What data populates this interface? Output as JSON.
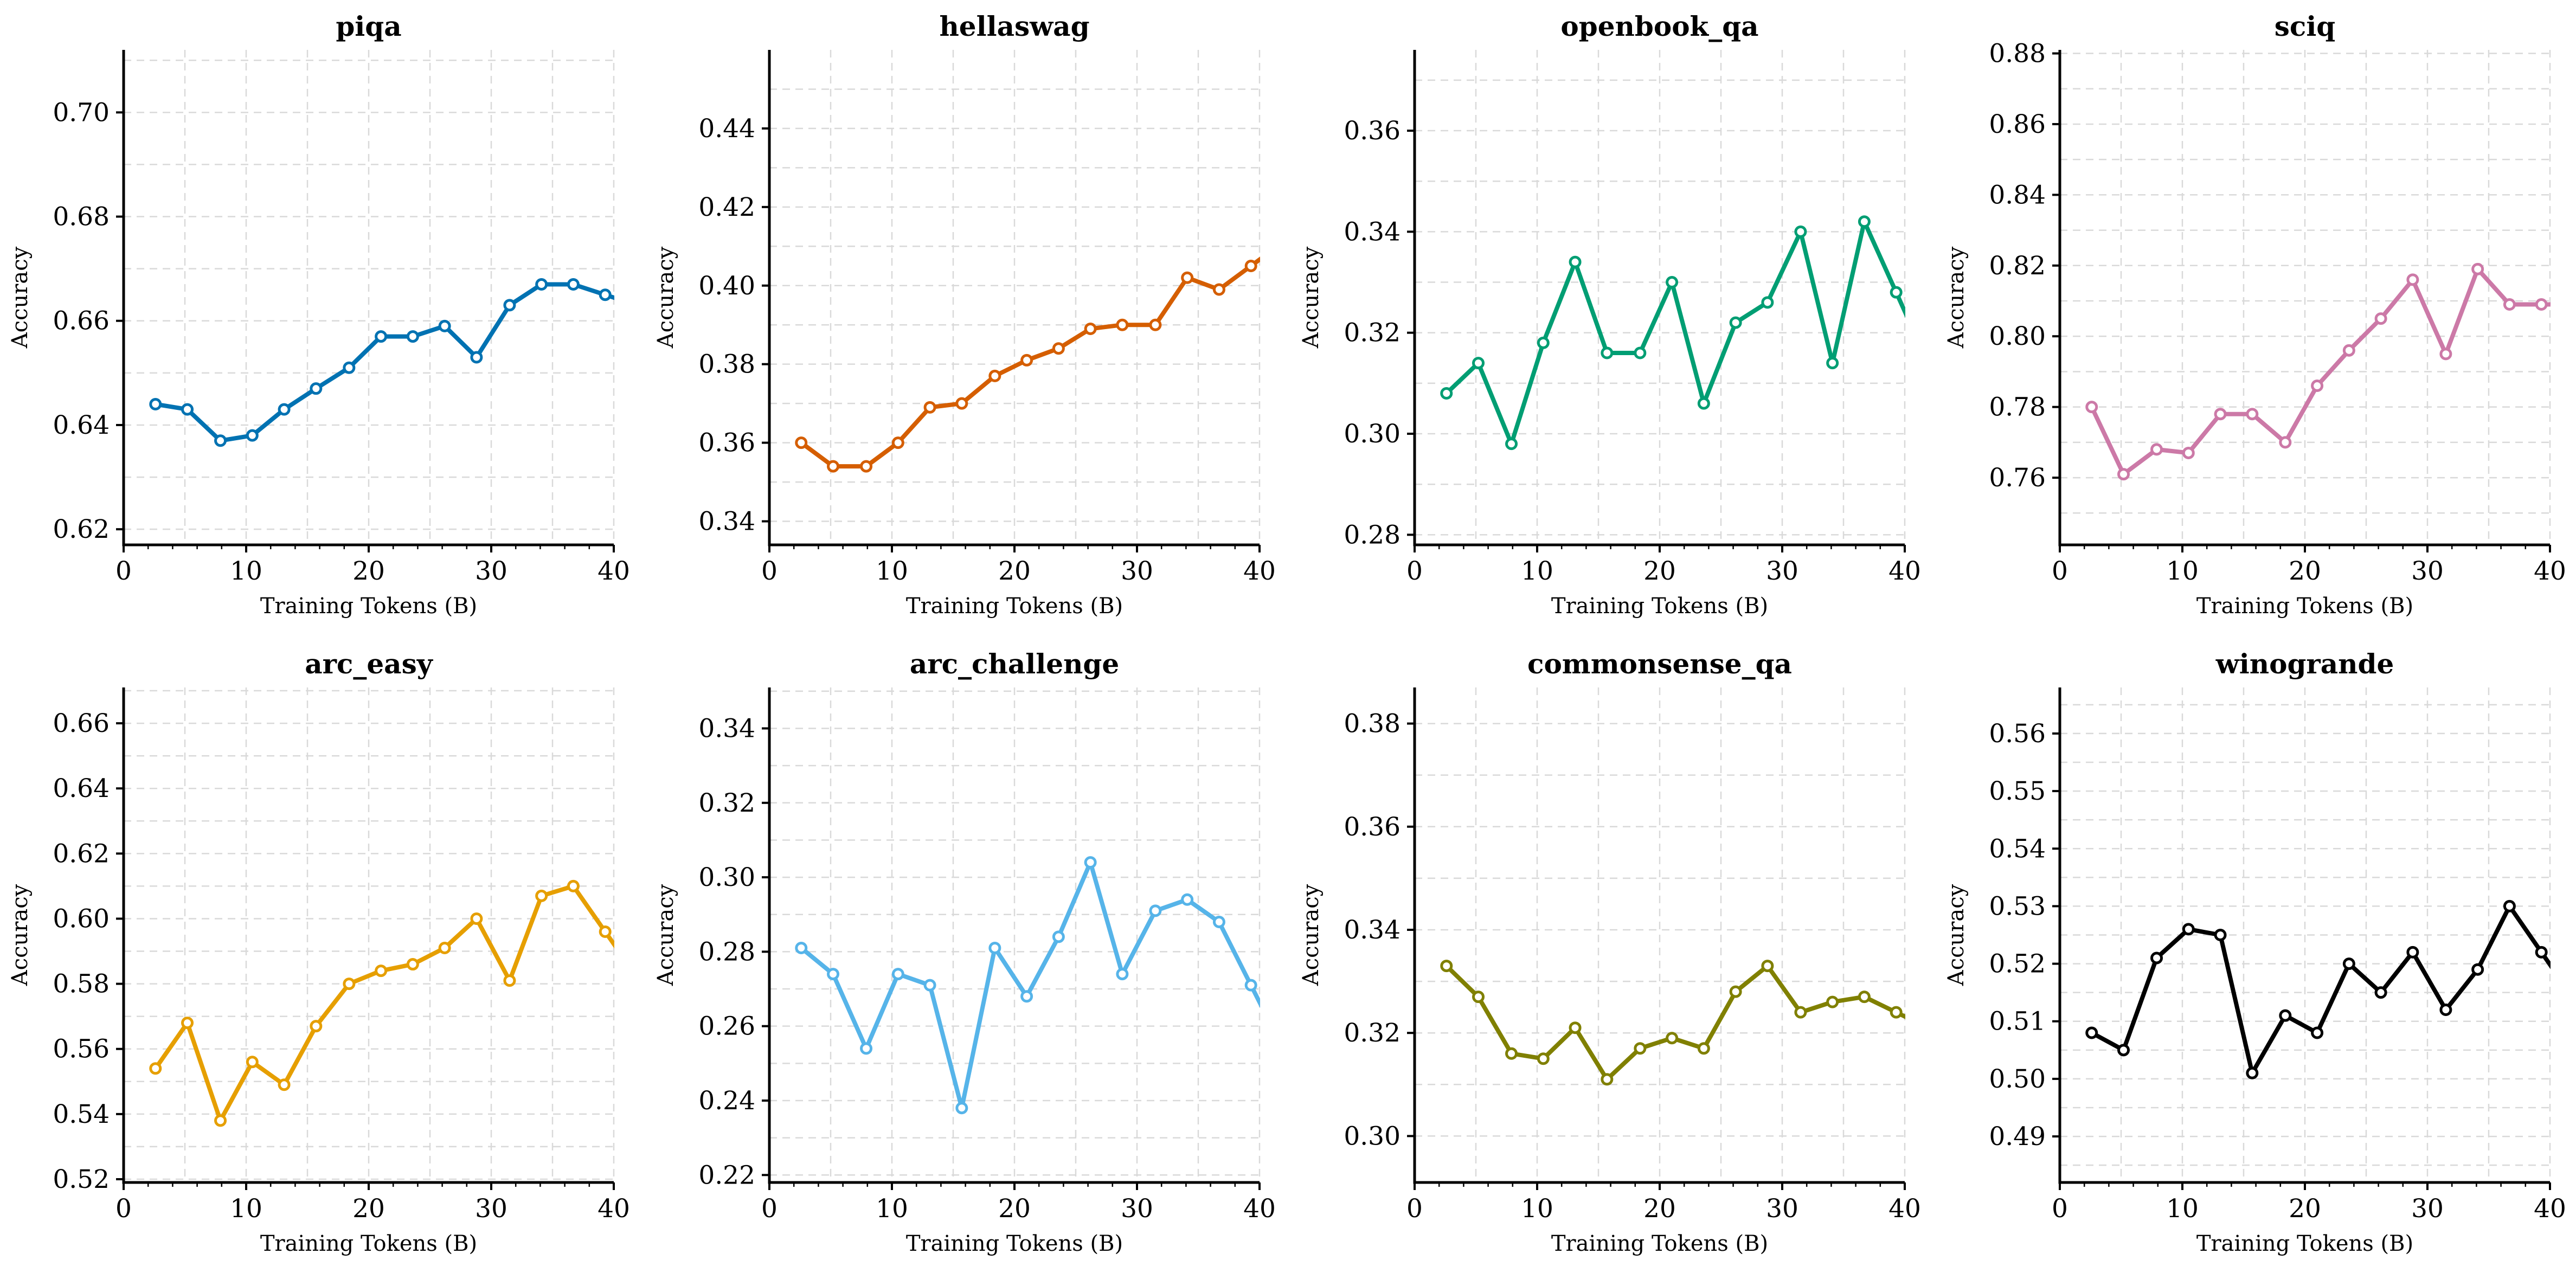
{
  "chart_data": [
    {
      "type": "line",
      "title": "piqa",
      "color": "#0072B2",
      "xlabel": "Training Tokens (B)",
      "ylabel": "Accuracy",
      "xlim": [
        0,
        40
      ],
      "ylim": [
        0.617,
        0.712
      ],
      "xticks": [
        0,
        10,
        20,
        30,
        40
      ],
      "xtick_labels": [
        "0",
        "10",
        "20",
        "30",
        "40"
      ],
      "yticks": [
        0.62,
        0.64,
        0.66,
        0.68,
        0.7
      ],
      "ytick_labels": [
        "0.62",
        "0.64",
        "0.66",
        "0.68",
        "0.70"
      ],
      "grid": true,
      "x": [
        2.6,
        5.2,
        7.9,
        10.5,
        13.1,
        15.7,
        18.4,
        21.0,
        23.6,
        26.2,
        28.8,
        31.5,
        34.1,
        36.7,
        39.3
      ],
      "y": [
        0.644,
        0.643,
        0.637,
        0.638,
        0.643,
        0.647,
        0.651,
        0.657,
        0.657,
        0.659,
        0.653,
        0.663,
        0.667,
        0.667,
        0.665
      ]
    },
    {
      "type": "line",
      "title": "hellaswag",
      "color": "#D55E00",
      "xlabel": "Training Tokens (B)",
      "ylabel": "Accuracy",
      "xlim": [
        0,
        40
      ],
      "ylim": [
        0.334,
        0.46
      ],
      "xticks": [
        0,
        10,
        20,
        30,
        40
      ],
      "xtick_labels": [
        "0",
        "10",
        "20",
        "30",
        "40"
      ],
      "yticks": [
        0.34,
        0.36,
        0.38,
        0.4,
        0.42,
        0.44
      ],
      "ytick_labels": [
        "0.34",
        "0.36",
        "0.38",
        "0.40",
        "0.42",
        "0.44"
      ],
      "grid": true,
      "x": [
        2.6,
        5.2,
        7.9,
        10.5,
        13.1,
        15.7,
        18.4,
        21.0,
        23.6,
        26.2,
        28.8,
        31.5,
        34.1,
        36.7,
        39.3
      ],
      "y": [
        0.36,
        0.354,
        0.354,
        0.36,
        0.369,
        0.37,
        0.377,
        0.381,
        0.384,
        0.389,
        0.39,
        0.39,
        0.402,
        0.399,
        0.405
      ]
    },
    {
      "type": "line",
      "title": "openbook_qa",
      "color": "#009E73",
      "xlabel": "Training Tokens (B)",
      "ylabel": "Accuracy",
      "xlim": [
        0,
        40
      ],
      "ylim": [
        0.278,
        0.376
      ],
      "xticks": [
        0,
        10,
        20,
        30,
        40
      ],
      "xtick_labels": [
        "0",
        "10",
        "20",
        "30",
        "40"
      ],
      "yticks": [
        0.28,
        0.3,
        0.32,
        0.34,
        0.36
      ],
      "ytick_labels": [
        "0.28",
        "0.30",
        "0.32",
        "0.34",
        "0.36"
      ],
      "grid": true,
      "x": [
        2.6,
        5.2,
        7.9,
        10.5,
        13.1,
        15.7,
        18.4,
        21.0,
        23.6,
        26.2,
        28.8,
        31.5,
        34.1,
        36.7,
        39.3
      ],
      "y": [
        0.308,
        0.314,
        0.298,
        0.318,
        0.334,
        0.316,
        0.316,
        0.33,
        0.306,
        0.322,
        0.326,
        0.34,
        0.314,
        0.342,
        0.328
      ]
    },
    {
      "type": "line",
      "title": "sciq",
      "color": "#CC79A7",
      "xlabel": "Training Tokens (B)",
      "ylabel": "Accuracy",
      "xlim": [
        0,
        40
      ],
      "ylim": [
        0.741,
        0.881
      ],
      "xticks": [
        0,
        10,
        20,
        30,
        40
      ],
      "xtick_labels": [
        "0",
        "10",
        "20",
        "30",
        "40"
      ],
      "yticks": [
        0.76,
        0.78,
        0.8,
        0.82,
        0.84,
        0.86,
        0.88
      ],
      "ytick_labels": [
        "0.76",
        "0.78",
        "0.80",
        "0.82",
        "0.84",
        "0.86",
        "0.88"
      ],
      "grid": true,
      "x": [
        2.6,
        5.2,
        7.9,
        10.5,
        13.1,
        15.7,
        18.4,
        21.0,
        23.6,
        26.2,
        28.8,
        31.5,
        34.1,
        36.7,
        39.3
      ],
      "y": [
        0.78,
        0.761,
        0.768,
        0.767,
        0.778,
        0.778,
        0.77,
        0.786,
        0.796,
        0.805,
        0.816,
        0.795,
        0.819,
        0.809,
        0.809
      ]
    },
    {
      "type": "line",
      "title": "arc_easy",
      "color": "#E69F00",
      "xlabel": "Training Tokens (B)",
      "ylabel": "Accuracy",
      "xlim": [
        0,
        40
      ],
      "ylim": [
        0.519,
        0.671
      ],
      "xticks": [
        0,
        10,
        20,
        30,
        40
      ],
      "xtick_labels": [
        "0",
        "10",
        "20",
        "30",
        "40"
      ],
      "yticks": [
        0.52,
        0.54,
        0.56,
        0.58,
        0.6,
        0.62,
        0.64,
        0.66
      ],
      "ytick_labels": [
        "0.52",
        "0.54",
        "0.56",
        "0.58",
        "0.60",
        "0.62",
        "0.64",
        "0.66"
      ],
      "grid": true,
      "x": [
        2.6,
        5.2,
        7.9,
        10.5,
        13.1,
        15.7,
        18.4,
        21.0,
        23.6,
        26.2,
        28.8,
        31.5,
        34.1,
        36.7,
        39.3
      ],
      "y": [
        0.554,
        0.568,
        0.538,
        0.556,
        0.549,
        0.567,
        0.58,
        0.584,
        0.586,
        0.591,
        0.6,
        0.581,
        0.607,
        0.61,
        0.596
      ]
    },
    {
      "type": "line",
      "title": "arc_challenge",
      "color": "#56B4E9",
      "xlabel": "Training Tokens (B)",
      "ylabel": "Accuracy",
      "xlim": [
        0,
        40
      ],
      "ylim": [
        0.218,
        0.351
      ],
      "xticks": [
        0,
        10,
        20,
        30,
        40
      ],
      "xtick_labels": [
        "0",
        "10",
        "20",
        "30",
        "40"
      ],
      "yticks": [
        0.22,
        0.24,
        0.26,
        0.28,
        0.3,
        0.32,
        0.34
      ],
      "ytick_labels": [
        "0.22",
        "0.24",
        "0.26",
        "0.28",
        "0.30",
        "0.32",
        "0.34"
      ],
      "grid": true,
      "x": [
        2.6,
        5.2,
        7.9,
        10.5,
        13.1,
        15.7,
        18.4,
        21.0,
        23.6,
        26.2,
        28.8,
        31.5,
        34.1,
        36.7,
        39.3
      ],
      "y": [
        0.281,
        0.274,
        0.254,
        0.274,
        0.271,
        0.238,
        0.281,
        0.268,
        0.284,
        0.304,
        0.274,
        0.291,
        0.294,
        0.288,
        0.271
      ]
    },
    {
      "type": "line",
      "title": "commonsense_qa",
      "color": "#808000",
      "xlabel": "Training Tokens (B)",
      "ylabel": "Accuracy",
      "xlim": [
        0,
        40
      ],
      "ylim": [
        0.291,
        0.387
      ],
      "xticks": [
        0,
        10,
        20,
        30,
        40
      ],
      "xtick_labels": [
        "0",
        "10",
        "20",
        "30",
        "40"
      ],
      "yticks": [
        0.3,
        0.32,
        0.34,
        0.36,
        0.38
      ],
      "ytick_labels": [
        "0.30",
        "0.32",
        "0.34",
        "0.36",
        "0.38"
      ],
      "grid": true,
      "x": [
        2.6,
        5.2,
        7.9,
        10.5,
        13.1,
        15.7,
        18.4,
        21.0,
        23.6,
        26.2,
        28.8,
        31.5,
        34.1,
        36.7,
        39.3
      ],
      "y": [
        0.333,
        0.327,
        0.316,
        0.315,
        0.321,
        0.311,
        0.317,
        0.319,
        0.317,
        0.328,
        0.333,
        0.324,
        0.326,
        0.327,
        0.324
      ]
    },
    {
      "type": "line",
      "title": "winogrande",
      "color": "#000000",
      "xlabel": "Training Tokens (B)",
      "ylabel": "Accuracy",
      "xlim": [
        0,
        40
      ],
      "ylim": [
        0.482,
        0.568
      ],
      "xticks": [
        0,
        10,
        20,
        30,
        40
      ],
      "xtick_labels": [
        "0",
        "10",
        "20",
        "30",
        "40"
      ],
      "yticks": [
        0.49,
        0.5,
        0.51,
        0.52,
        0.53,
        0.54,
        0.55,
        0.56
      ],
      "ytick_labels": [
        "0.49",
        "0.50",
        "0.51",
        "0.52",
        "0.53",
        "0.54",
        "0.55",
        "0.56"
      ],
      "grid": true,
      "x": [
        2.6,
        5.2,
        7.9,
        10.5,
        13.1,
        15.7,
        18.4,
        21.0,
        23.6,
        26.2,
        28.8,
        31.5,
        34.1,
        36.7,
        39.3
      ],
      "y": [
        0.508,
        0.505,
        0.521,
        0.526,
        0.525,
        0.501,
        0.511,
        0.508,
        0.52,
        0.515,
        0.522,
        0.512,
        0.519,
        0.53,
        0.522
      ]
    }
  ]
}
